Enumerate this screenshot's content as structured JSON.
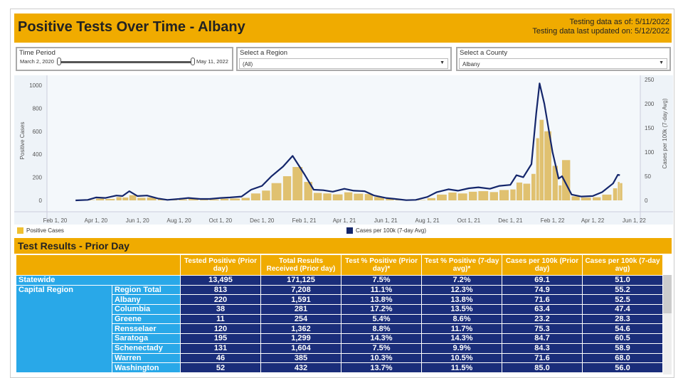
{
  "header": {
    "title": "Positive Tests Over Time - Albany",
    "as_of": "Testing data as of: 5/11/2022",
    "updated": "Testing data last updated on: 5/12/2022"
  },
  "filters": {
    "time_period": {
      "label": "Time Period",
      "start": "March 2, 2020",
      "end": "May 11, 2022"
    },
    "region": {
      "label": "Select a Region",
      "value": "(All)"
    },
    "county": {
      "label": "Select a County",
      "value": "Albany"
    }
  },
  "colors": {
    "header": "#f0ab00",
    "bars": "#e0c170",
    "line": "#14266b",
    "region_cell": "#29a8e8",
    "value_cell": "#1a2d7a"
  },
  "chart_data": {
    "type": "bar+line",
    "ylabel": "Positive Cases",
    "y2label": "Cases per 100k (7-day Avg)",
    "ylim": [
      0,
      1000
    ],
    "y2lim": [
      0,
      250
    ],
    "yticks": [
      "0",
      "200",
      "400",
      "600",
      "800",
      "1000"
    ],
    "y2ticks": [
      "0",
      "50",
      "100",
      "150",
      "200",
      "250"
    ],
    "xticks": [
      "Feb 1, 20",
      "Apr 1, 20",
      "Jun 1, 20",
      "Aug 1, 20",
      "Oct 1, 20",
      "Dec 1, 20",
      "Feb 1, 21",
      "Apr 1, 21",
      "Jun 1, 21",
      "Aug 1, 21",
      "Oct 1, 21",
      "Dec 1, 21",
      "Feb 1, 22",
      "Apr 1, 22",
      "Jun 1, 22"
    ],
    "xtick_dates": [
      "2020-02-01",
      "2020-04-01",
      "2020-06-01",
      "2020-08-01",
      "2020-10-01",
      "2020-12-01",
      "2021-02-01",
      "2021-04-01",
      "2021-06-01",
      "2021-08-01",
      "2021-10-01",
      "2021-12-01",
      "2022-02-01",
      "2022-04-01",
      "2022-06-01"
    ],
    "xlim": [
      "2020-01-20",
      "2022-06-10"
    ],
    "series": [
      {
        "name": "Positive Cases",
        "type": "bar",
        "points": [
          [
            "2020-03-02",
            0
          ],
          [
            "2020-03-20",
            3
          ],
          [
            "2020-04-01",
            15
          ],
          [
            "2020-04-15",
            12
          ],
          [
            "2020-05-01",
            28
          ],
          [
            "2020-05-10",
            25
          ],
          [
            "2020-05-20",
            45
          ],
          [
            "2020-06-01",
            22
          ],
          [
            "2020-06-15",
            25
          ],
          [
            "2020-07-01",
            10
          ],
          [
            "2020-07-15",
            3
          ],
          [
            "2020-08-01",
            8
          ],
          [
            "2020-08-15",
            14
          ],
          [
            "2020-09-01",
            8
          ],
          [
            "2020-09-15",
            8
          ],
          [
            "2020-10-01",
            14
          ],
          [
            "2020-10-15",
            16
          ],
          [
            "2020-11-01",
            22
          ],
          [
            "2020-11-15",
            60
          ],
          [
            "2020-12-01",
            85
          ],
          [
            "2020-12-15",
            150
          ],
          [
            "2021-01-01",
            210
          ],
          [
            "2021-01-15",
            290
          ],
          [
            "2021-02-01",
            160
          ],
          [
            "2021-02-15",
            65
          ],
          [
            "2021-03-01",
            60
          ],
          [
            "2021-03-15",
            52
          ],
          [
            "2021-04-01",
            70
          ],
          [
            "2021-04-15",
            58
          ],
          [
            "2021-05-01",
            55
          ],
          [
            "2021-05-15",
            30
          ],
          [
            "2021-06-01",
            14
          ],
          [
            "2021-06-15",
            8
          ],
          [
            "2021-07-01",
            2
          ],
          [
            "2021-07-15",
            3
          ],
          [
            "2021-08-01",
            20
          ],
          [
            "2021-08-15",
            50
          ],
          [
            "2021-09-01",
            68
          ],
          [
            "2021-09-15",
            60
          ],
          [
            "2021-10-01",
            75
          ],
          [
            "2021-10-15",
            80
          ],
          [
            "2021-11-01",
            72
          ],
          [
            "2021-11-15",
            90
          ],
          [
            "2021-12-01",
            95
          ],
          [
            "2021-12-10",
            155
          ],
          [
            "2021-12-20",
            145
          ],
          [
            "2022-01-01",
            230
          ],
          [
            "2022-01-08",
            540
          ],
          [
            "2022-01-13",
            700
          ],
          [
            "2022-01-20",
            600
          ],
          [
            "2022-02-01",
            300
          ],
          [
            "2022-02-10",
            130
          ],
          [
            "2022-02-15",
            350
          ],
          [
            "2022-03-01",
            35
          ],
          [
            "2022-03-15",
            24
          ],
          [
            "2022-04-01",
            27
          ],
          [
            "2022-04-15",
            50
          ],
          [
            "2022-05-01",
            105
          ],
          [
            "2022-05-08",
            160
          ],
          [
            "2022-05-11",
            150
          ]
        ]
      },
      {
        "name": "Cases per 100k (7-day Avg)",
        "type": "line",
        "axis": "right",
        "points": [
          [
            "2020-03-02",
            0
          ],
          [
            "2020-03-20",
            1
          ],
          [
            "2020-04-01",
            6
          ],
          [
            "2020-04-15",
            5
          ],
          [
            "2020-05-01",
            10
          ],
          [
            "2020-05-10",
            9
          ],
          [
            "2020-05-20",
            19
          ],
          [
            "2020-06-01",
            9
          ],
          [
            "2020-06-15",
            10
          ],
          [
            "2020-07-01",
            4
          ],
          [
            "2020-07-15",
            1
          ],
          [
            "2020-08-01",
            3
          ],
          [
            "2020-08-15",
            5
          ],
          [
            "2020-09-01",
            3
          ],
          [
            "2020-09-15",
            3
          ],
          [
            "2020-10-01",
            5
          ],
          [
            "2020-10-15",
            6
          ],
          [
            "2020-11-01",
            8
          ],
          [
            "2020-11-15",
            22
          ],
          [
            "2020-12-01",
            30
          ],
          [
            "2020-12-15",
            50
          ],
          [
            "2021-01-01",
            70
          ],
          [
            "2021-01-15",
            92
          ],
          [
            "2021-02-01",
            55
          ],
          [
            "2021-02-15",
            22
          ],
          [
            "2021-03-01",
            21
          ],
          [
            "2021-03-15",
            18
          ],
          [
            "2021-04-01",
            24
          ],
          [
            "2021-04-15",
            20
          ],
          [
            "2021-05-01",
            19
          ],
          [
            "2021-05-15",
            10
          ],
          [
            "2021-06-01",
            5
          ],
          [
            "2021-06-15",
            3
          ],
          [
            "2021-07-01",
            0.5
          ],
          [
            "2021-07-15",
            1
          ],
          [
            "2021-08-01",
            7
          ],
          [
            "2021-08-15",
            17
          ],
          [
            "2021-09-01",
            23
          ],
          [
            "2021-09-15",
            20
          ],
          [
            "2021-10-01",
            25
          ],
          [
            "2021-10-15",
            27
          ],
          [
            "2021-11-01",
            24
          ],
          [
            "2021-11-15",
            30
          ],
          [
            "2021-12-01",
            32
          ],
          [
            "2021-12-10",
            52
          ],
          [
            "2021-12-20",
            48
          ],
          [
            "2022-01-01",
            75
          ],
          [
            "2022-01-08",
            180
          ],
          [
            "2022-01-13",
            242
          ],
          [
            "2022-01-20",
            200
          ],
          [
            "2022-02-01",
            100
          ],
          [
            "2022-02-10",
            45
          ],
          [
            "2022-02-15",
            50
          ],
          [
            "2022-03-01",
            12
          ],
          [
            "2022-03-15",
            8
          ],
          [
            "2022-04-01",
            9
          ],
          [
            "2022-04-15",
            17
          ],
          [
            "2022-05-01",
            35
          ],
          [
            "2022-05-08",
            53
          ],
          [
            "2022-05-11",
            52
          ]
        ]
      }
    ],
    "legend": [
      "Positive Cases",
      "Cases per 100k (7-day Avg)"
    ],
    "grid": false
  },
  "table": {
    "title": "Test Results - Prior Day",
    "columns": [
      "Tested Positive (Prior day)",
      "Total Results Received (Prior day)",
      "Test % Positive (Prior day)*",
      "Test % Positive (7-day avg)*",
      "Cases per 100k (Prior day)",
      "Cases per 100k (7-day avg)"
    ],
    "statewide": {
      "label": "Statewide",
      "values": [
        "13,495",
        "171,125",
        "7.5%",
        "7.2%",
        "69.1",
        "51.0"
      ]
    },
    "region": {
      "label": "Capital Region",
      "rows": [
        {
          "name": "Region Total",
          "values": [
            "813",
            "7,208",
            "11.1%",
            "12.3%",
            "74.9",
            "55.2"
          ]
        },
        {
          "name": "Albany",
          "values": [
            "220",
            "1,591",
            "13.8%",
            "13.8%",
            "71.6",
            "52.5"
          ]
        },
        {
          "name": "Columbia",
          "values": [
            "38",
            "281",
            "17.2%",
            "13.5%",
            "63.4",
            "47.4"
          ]
        },
        {
          "name": "Greene",
          "values": [
            "11",
            "254",
            "5.4%",
            "8.6%",
            "23.2",
            "28.3"
          ]
        },
        {
          "name": "Rensselaer",
          "values": [
            "120",
            "1,362",
            "8.8%",
            "11.7%",
            "75.3",
            "54.6"
          ]
        },
        {
          "name": "Saratoga",
          "values": [
            "195",
            "1,299",
            "14.3%",
            "14.3%",
            "84.7",
            "60.5"
          ]
        },
        {
          "name": "Schenectady",
          "values": [
            "131",
            "1,604",
            "7.5%",
            "9.9%",
            "84.3",
            "58.9"
          ]
        },
        {
          "name": "Warren",
          "values": [
            "46",
            "385",
            "10.3%",
            "10.5%",
            "71.6",
            "68.0"
          ]
        },
        {
          "name": "Washington",
          "values": [
            "52",
            "432",
            "13.7%",
            "11.5%",
            "85.0",
            "56.0"
          ]
        }
      ]
    }
  }
}
